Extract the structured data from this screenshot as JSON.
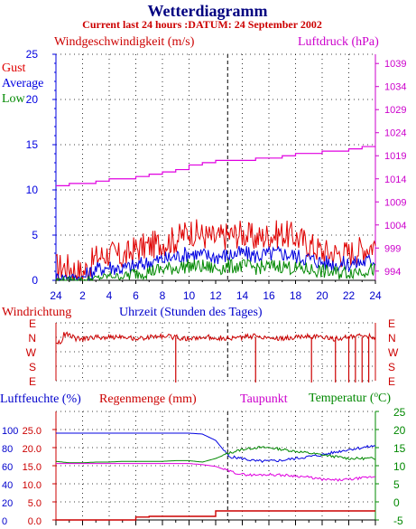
{
  "header": {
    "title": "Wetterdiagramm",
    "subtitle": "Current last 24 hours :DATUM: 24 September 2002"
  },
  "colors": {
    "red": "#e00000",
    "blue": "#0000e0",
    "green": "#008800",
    "magenta": "#e000e0",
    "darkblue": "#000080",
    "darkred": "#cc0000",
    "grid": "#000000"
  },
  "chart_data": [
    {
      "id": "wind",
      "type": "line",
      "title": "Windgeschwindigkeit (m/s)",
      "y2label": "Luftdruck (hPa)",
      "xlabel": "Uhrzeit (Stunden des Tages)",
      "legend": [
        "Gust",
        "Average",
        "Low"
      ],
      "x_ticks": [
        "24",
        "2",
        "4",
        "6",
        "8",
        "10",
        "12",
        "14",
        "16",
        "18",
        "20",
        "22",
        "24"
      ],
      "y_ticks": [
        "0",
        "5",
        "10",
        "15",
        "20",
        "25"
      ],
      "y2_ticks": [
        "994",
        "999",
        "1004",
        "1009",
        "1014",
        "1019",
        "1024",
        "1029",
        "1034",
        "1039"
      ],
      "ylim": [
        0,
        25
      ],
      "y2lim": [
        992,
        1041
      ],
      "grid": true,
      "series": [
        {
          "name": "Gust",
          "color": "#e00000",
          "x": [
            0,
            1,
            2,
            3,
            4,
            5,
            6,
            7,
            8,
            9,
            10,
            11,
            12,
            13,
            14,
            15,
            16,
            17,
            18,
            19,
            20,
            21,
            22,
            23,
            24
          ],
          "y": [
            1.5,
            1.5,
            0.8,
            2.5,
            3.0,
            2.5,
            3.5,
            3.8,
            4.2,
            4.5,
            5.5,
            5.0,
            4.6,
            5.0,
            5.2,
            4.6,
            5.0,
            5.2,
            4.8,
            4.0,
            3.2,
            3.0,
            3.0,
            3.5,
            4.0
          ]
        },
        {
          "name": "Average",
          "color": "#0000e0",
          "x": [
            0,
            1,
            2,
            3,
            4,
            5,
            6,
            7,
            8,
            9,
            10,
            11,
            12,
            13,
            14,
            15,
            16,
            17,
            18,
            19,
            20,
            21,
            22,
            23,
            24
          ],
          "y": [
            0.4,
            0.4,
            0.3,
            1.2,
            1.5,
            1.3,
            1.6,
            2.0,
            2.3,
            2.6,
            3.0,
            2.8,
            2.6,
            2.8,
            3.0,
            2.7,
            2.9,
            3.0,
            2.7,
            2.4,
            2.0,
            1.8,
            1.8,
            2.0,
            2.3
          ]
        },
        {
          "name": "Low",
          "color": "#008800",
          "x": [
            0,
            1,
            2,
            3,
            4,
            5,
            6,
            7,
            8,
            9,
            10,
            11,
            12,
            13,
            14,
            15,
            16,
            17,
            18,
            19,
            20,
            21,
            22,
            23,
            24
          ],
          "y": [
            0,
            0,
            0,
            0.2,
            0.5,
            0.4,
            0.8,
            1.0,
            1.2,
            1.4,
            1.6,
            1.5,
            1.3,
            1.5,
            1.6,
            1.4,
            1.5,
            1.6,
            1.3,
            1.2,
            1.0,
            0.8,
            0.9,
            1.1,
            1.2
          ]
        },
        {
          "name": "Luftdruck",
          "color": "#e000e0",
          "x": [
            0,
            1,
            2,
            3,
            4,
            5,
            6,
            7,
            8,
            9,
            10,
            11,
            12,
            13,
            14,
            15,
            16,
            17,
            18,
            19,
            20,
            21,
            22,
            23,
            24
          ],
          "y": [
            1012.5,
            1013.0,
            1013.0,
            1013.5,
            1014.0,
            1014.0,
            1014.5,
            1015.0,
            1015.5,
            1016.0,
            1017.0,
            1017.5,
            1018.0,
            1018.0,
            1018.0,
            1018.5,
            1018.5,
            1019.0,
            1019.5,
            1019.5,
            1020.0,
            1020.0,
            1020.5,
            1021.0,
            1021.0
          ]
        }
      ]
    },
    {
      "id": "direction",
      "type": "line",
      "title": "Windrichtung",
      "categories_y": [
        "E",
        "N",
        "W",
        "S",
        "E"
      ],
      "x_ticks": [
        "24",
        "2",
        "4",
        "6",
        "8",
        "10",
        "12",
        "14",
        "16",
        "18",
        "20",
        "22",
        "24"
      ],
      "grid": true,
      "series": [
        {
          "name": "Windrichtung",
          "color": "#cc0000",
          "x": [
            0,
            0.5,
            0.6,
            1.0,
            1.5,
            2.0,
            3.0,
            4.0,
            5.0,
            6.0,
            7.0,
            8.0,
            9.0,
            10.0,
            11.0,
            12.0,
            13.0,
            14.0,
            15.0,
            16.0,
            17.0,
            18.0,
            19.0,
            20.0,
            21.0,
            22.0,
            23.0,
            24.0
          ],
          "y": [
            1.3,
            1.3,
            0.8,
            0.8,
            1.1,
            1.1,
            1.0,
            1.0,
            0.9,
            1.1,
            1.0,
            0.9,
            1.0,
            1.1,
            1.0,
            1.0,
            1.1,
            1.0,
            0.9,
            1.0,
            1.1,
            1.0,
            0.9,
            1.0,
            1.1,
            1.0,
            0.9,
            1.0
          ]
        }
      ],
      "spikes": [
        9.0,
        15.0,
        19.2,
        21.0,
        22.0,
        22.5,
        23.0,
        23.5
      ]
    },
    {
      "id": "humidity",
      "type": "line",
      "title": "Luftfeuchte (%)",
      "title2": "Regenmenge (mm)",
      "title3": "Taupunkt",
      "title4": "Temperatur (",
      "degree": "o",
      "title4_end": "C)",
      "y_ticks_pct": [
        "0",
        "20",
        "40",
        "60",
        "80",
        "100"
      ],
      "y_ticks_mm": [
        "0.0",
        "5.0",
        "10.0",
        "15.0",
        "20.0",
        "25.0"
      ],
      "y2_ticks": [
        "-5",
        "0",
        "5",
        "10",
        "15",
        "20",
        "25"
      ],
      "ylim": [
        0,
        120
      ],
      "y2lim": [
        -5,
        25
      ],
      "grid": true,
      "series": [
        {
          "name": "Luftfeuchte",
          "color": "#0000e0",
          "x": [
            0,
            1,
            2,
            3,
            4,
            5,
            6,
            7,
            8,
            9,
            10,
            11,
            12,
            13,
            14,
            15,
            16,
            17,
            18,
            19,
            20,
            21,
            22,
            23,
            24
          ],
          "y": [
            96,
            96,
            96,
            96,
            96,
            96,
            96,
            96,
            96,
            96,
            96,
            95,
            88,
            70,
            68,
            65,
            65,
            66,
            68,
            70,
            72,
            75,
            78,
            80,
            82
          ]
        },
        {
          "name": "Regenmenge",
          "color": "#cc0000",
          "x": [
            0,
            1,
            2,
            3,
            4,
            5,
            6,
            7,
            8,
            9,
            10,
            11,
            12,
            13,
            14,
            15,
            16,
            17,
            18,
            19,
            20,
            21,
            22,
            23,
            24
          ],
          "y": [
            0,
            0,
            0,
            0,
            0,
            0,
            0.8,
            1,
            1,
            1,
            1,
            1,
            2.5,
            2.5,
            2.5,
            2.5,
            2.5,
            2.5,
            2.5,
            2.5,
            2.5,
            2.5,
            2.5,
            2.5,
            2.5
          ]
        },
        {
          "name": "Taupunkt",
          "color": "#e000e0",
          "x": [
            0,
            1,
            2,
            3,
            4,
            5,
            6,
            7,
            8,
            9,
            10,
            11,
            12,
            13,
            14,
            15,
            16,
            17,
            18,
            19,
            20,
            21,
            22,
            23,
            24
          ],
          "y": [
            10.6,
            10.6,
            10.6,
            10.6,
            10.6,
            10.6,
            10.6,
            10.6,
            10.6,
            10.6,
            10.6,
            10.3,
            9.8,
            8.5,
            7.6,
            7.4,
            7.6,
            7.4,
            7.2,
            6.8,
            6.2,
            6.0,
            6.2,
            6.6,
            7.0
          ]
        },
        {
          "name": "Temperatur",
          "color": "#008800",
          "x": [
            0,
            1,
            2,
            3,
            4,
            5,
            6,
            7,
            8,
            9,
            10,
            11,
            12,
            13,
            14,
            15,
            16,
            17,
            18,
            19,
            20,
            21,
            22,
            23,
            24
          ],
          "y": [
            11.2,
            10.8,
            10.8,
            11.0,
            11.0,
            11.2,
            11.2,
            11.2,
            11.2,
            11.4,
            11.4,
            11.0,
            12.0,
            13.5,
            14.5,
            15.0,
            15.0,
            14.5,
            14.0,
            13.5,
            13.0,
            12.5,
            12.0,
            12.0,
            12.0
          ]
        }
      ]
    }
  ]
}
